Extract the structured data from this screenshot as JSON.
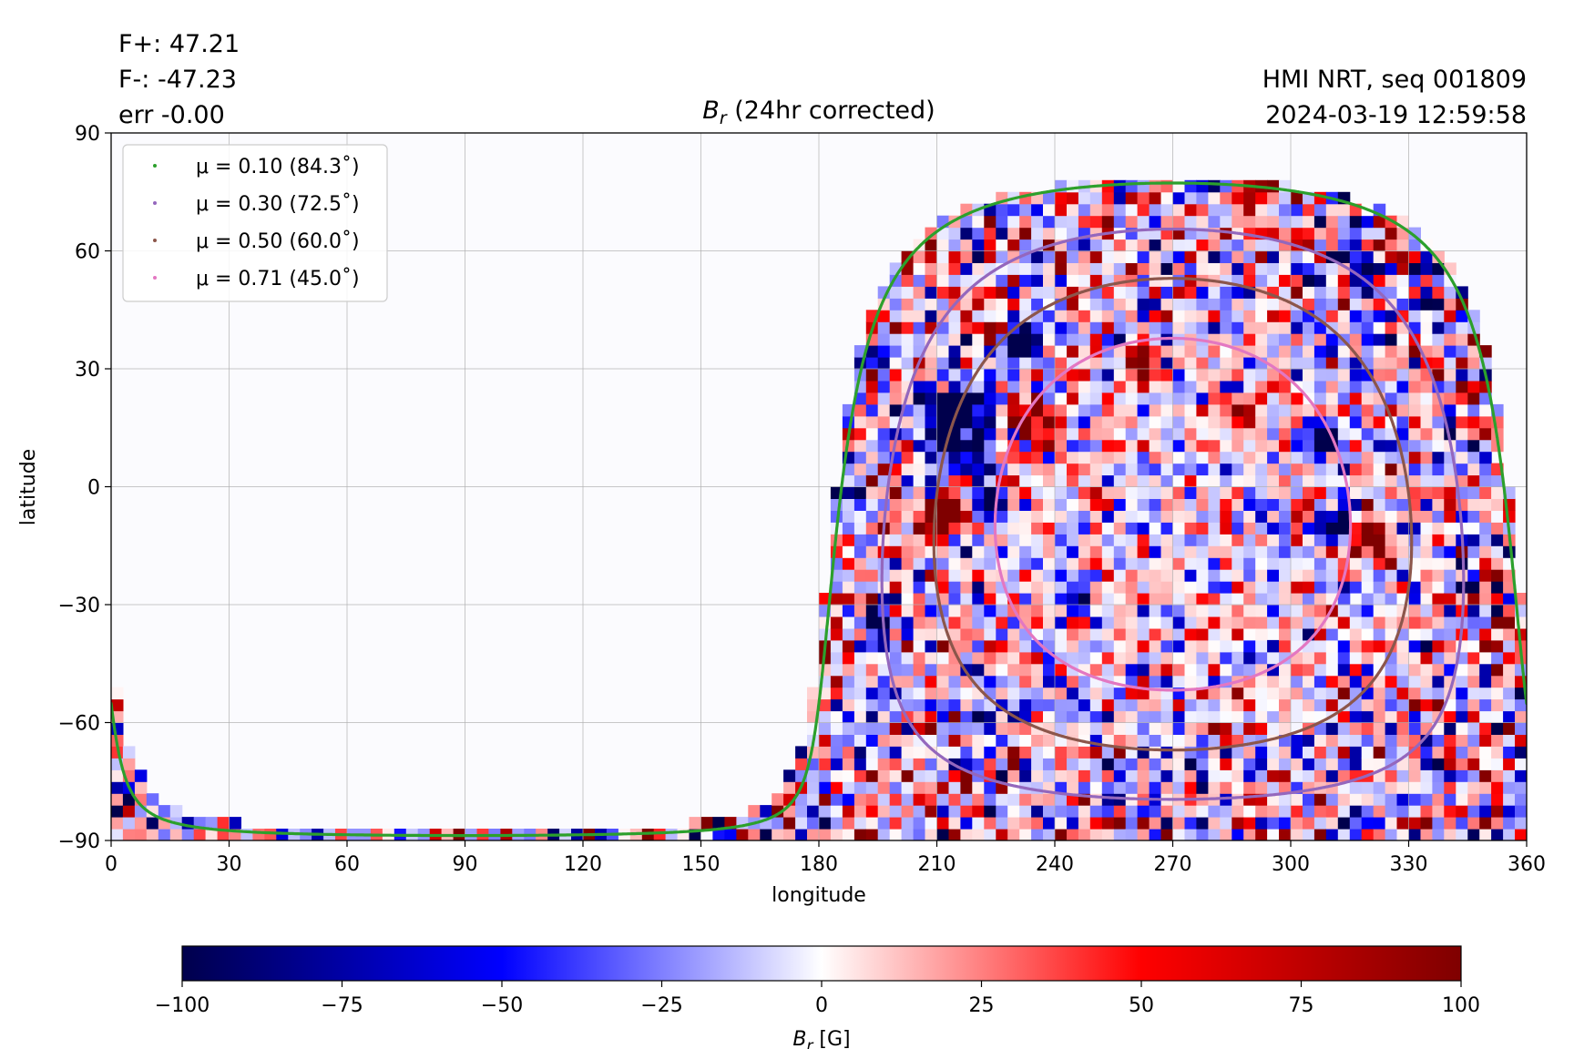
{
  "stats": {
    "fplus": "F+: 47.21",
    "fminus": "F-: -47.23",
    "err": "err -0.00"
  },
  "header_right": {
    "line1": "HMI NRT, seq 001809",
    "line2": "2024-03-19 12:59:58"
  },
  "chart_data": {
    "type": "heatmap",
    "title_symbol": "B",
    "title_subscript": "r",
    "title_rest": " (24hr corrected)",
    "xlabel": "longitude",
    "ylabel": "latitude",
    "xlim": [
      0,
      360
    ],
    "ylim": [
      -90,
      90
    ],
    "xticks": [
      0,
      30,
      60,
      90,
      120,
      150,
      180,
      210,
      240,
      270,
      300,
      330,
      360
    ],
    "yticks": [
      -90,
      -60,
      -30,
      0,
      30,
      60,
      90
    ],
    "ytick_labels": [
      "−90",
      "−60",
      "−30",
      "0",
      "30",
      "60",
      "90"
    ],
    "grid": true,
    "legend_placement": "top-left",
    "disk_center_longitude": 270,
    "disk_center_latitude": -7,
    "series": [
      {
        "name": "μ = 0.10 (84.3˚)",
        "mu": 0.1,
        "angle_deg": 84.3,
        "color": "#2ca02c"
      },
      {
        "name": "μ = 0.30 (72.5˚)",
        "mu": 0.3,
        "angle_deg": 72.5,
        "color": "#9467bd"
      },
      {
        "name": "μ = 0.50 (60.0˚)",
        "mu": 0.5,
        "angle_deg": 60.0,
        "color": "#8c564b"
      },
      {
        "name": "μ = 0.71 (45.0˚)",
        "mu": 0.71,
        "angle_deg": 45.0,
        "color": "#e377c2"
      }
    ],
    "colorbar": {
      "label_symbol": "B",
      "label_subscript": "r",
      "label_rest": " [G]",
      "min": -100,
      "max": 100,
      "ticks": [
        -100,
        -75,
        -50,
        -25,
        0,
        25,
        50,
        75,
        100
      ],
      "tick_labels": [
        "−100",
        "−75",
        "−50",
        "−25",
        "0",
        "25",
        "50",
        "75",
        "100"
      ],
      "colormap": "seismic",
      "colors": [
        "#00004c",
        "#0000ff",
        "#ffffff",
        "#ff0000",
        "#7f0000"
      ]
    }
  }
}
